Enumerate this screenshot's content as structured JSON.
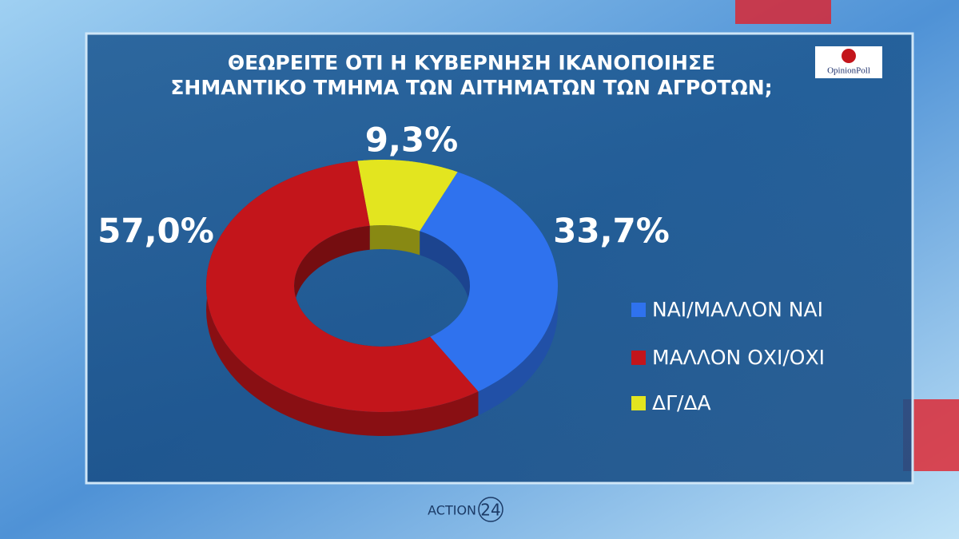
{
  "chart_data": {
    "type": "donut",
    "title": [
      "ΘΕΩΡΕΙΤΕ ΟΤΙ Η ΚΥΒΕΡΝΗΣΗ ΙΚΑΝΟΠΟΙΗΣΕ",
      "ΣΗΜΑΝΤΙΚΟ ΤΜΗΜΑ ΤΩΝ ΑΙΤΗΜΑΤΩΝ ΤΩΝ ΑΓΡΟΤΩΝ;"
    ],
    "categories": [
      "ΝΑΙ/ΜΑΛΛΟΝ ΝΑΙ",
      "ΜΑΛΛΟΝ ΟΧΙ/ΟΧΙ",
      "ΔΓ/ΔΑ"
    ],
    "values": [
      33.7,
      57.0,
      9.3
    ],
    "value_labels": [
      "33,7%",
      "57,0%",
      "9,3%"
    ],
    "colors": [
      "#2f72ee",
      "#c3151b",
      "#e3e51f"
    ]
  },
  "branding": {
    "pollster": "OpinionPoll",
    "channel": "ACTION",
    "channel_number": "24"
  }
}
